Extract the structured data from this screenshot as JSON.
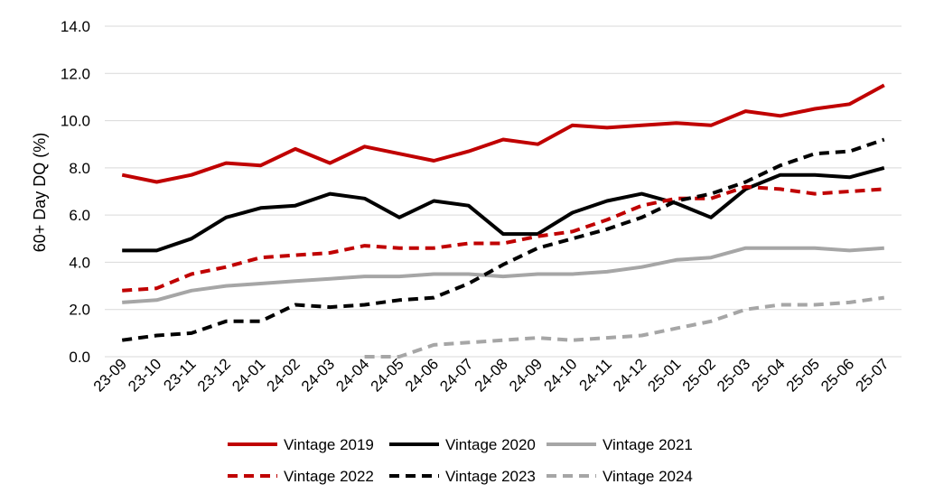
{
  "chart_data": {
    "type": "line",
    "title": "",
    "xlabel": "",
    "ylabel": "60+ Day DQ (%)",
    "ylim": [
      0,
      14
    ],
    "yticks": [
      "0.0",
      "2.0",
      "4.0",
      "6.0",
      "8.0",
      "10.0",
      "12.0",
      "14.0"
    ],
    "grid": true,
    "legend_position": "bottom",
    "categories": [
      "23-09",
      "23-10",
      "23-11",
      "23-12",
      "24-01",
      "24-02",
      "24-03",
      "24-04",
      "24-05",
      "24-06",
      "24-07",
      "24-08",
      "24-09",
      "24-10",
      "24-11",
      "24-12",
      "25-01",
      "25-02",
      "25-03",
      "25-04",
      "25-05",
      "25-06",
      "25-07"
    ],
    "series": [
      {
        "name": "Vintage 2019",
        "color": "#C00000",
        "dash": "solid",
        "values": [
          7.7,
          7.4,
          7.7,
          8.2,
          8.1,
          8.8,
          8.2,
          8.9,
          8.6,
          8.3,
          8.7,
          9.2,
          9.0,
          9.8,
          9.7,
          9.8,
          9.9,
          9.8,
          10.4,
          10.2,
          10.5,
          10.7,
          11.5
        ]
      },
      {
        "name": "Vintage 2020",
        "color": "#000000",
        "dash": "solid",
        "values": [
          4.5,
          4.5,
          5.0,
          5.9,
          6.3,
          6.4,
          6.9,
          6.7,
          5.9,
          6.6,
          6.4,
          5.2,
          5.2,
          6.1,
          6.6,
          6.9,
          6.5,
          5.9,
          7.1,
          7.7,
          7.7,
          7.6,
          8.0
        ]
      },
      {
        "name": "Vintage 2021",
        "color": "#A6A6A6",
        "dash": "solid",
        "values": [
          2.3,
          2.4,
          2.8,
          3.0,
          3.1,
          3.2,
          3.3,
          3.4,
          3.4,
          3.5,
          3.5,
          3.4,
          3.5,
          3.5,
          3.6,
          3.8,
          4.1,
          4.2,
          4.6,
          4.6,
          4.6,
          4.5,
          4.6
        ]
      },
      {
        "name": "Vintage 2022",
        "color": "#C00000",
        "dash": "dashed",
        "values": [
          2.8,
          2.9,
          3.5,
          3.8,
          4.2,
          4.3,
          4.4,
          4.7,
          4.6,
          4.6,
          4.8,
          4.8,
          5.1,
          5.3,
          5.8,
          6.4,
          6.7,
          6.7,
          7.2,
          7.1,
          6.9,
          7.0,
          7.1
        ]
      },
      {
        "name": "Vintage 2023",
        "color": "#000000",
        "dash": "dashed",
        "values": [
          0.7,
          0.9,
          1.0,
          1.5,
          1.5,
          2.2,
          2.1,
          2.2,
          2.4,
          2.5,
          3.1,
          3.9,
          4.6,
          5.0,
          5.4,
          5.9,
          6.6,
          6.9,
          7.4,
          8.1,
          8.6,
          8.7,
          9.2
        ]
      },
      {
        "name": "Vintage 2024",
        "color": "#A6A6A6",
        "dash": "dashed",
        "values": [
          null,
          null,
          null,
          null,
          null,
          null,
          null,
          0.0,
          0.0,
          0.5,
          0.6,
          0.7,
          0.8,
          0.7,
          0.8,
          0.9,
          1.2,
          1.5,
          2.0,
          2.2,
          2.2,
          2.3,
          2.5
        ]
      }
    ]
  }
}
